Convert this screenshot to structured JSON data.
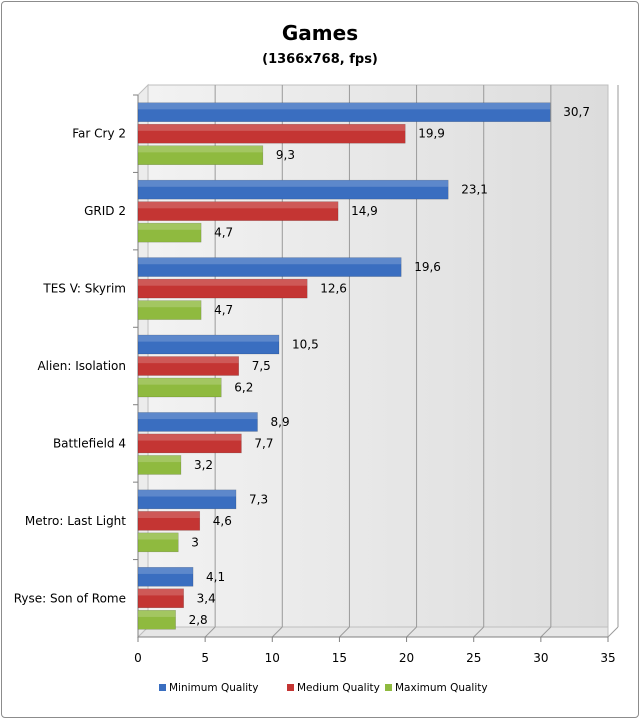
{
  "chart_data": {
    "type": "bar",
    "orientation": "horizontal",
    "title": "Games",
    "subtitle": "(1366x768, fps)",
    "categories": [
      "Far Cry 2",
      "GRID 2",
      "TES V: Skyrim",
      "Alien: Isolation",
      "Battlefield 4",
      "Metro: Last Light",
      "Ryse: Son of Rome"
    ],
    "series": [
      {
        "name": "Minimum Quality",
        "color": "#3a6ec0",
        "values": [
          30.7,
          23.1,
          19.6,
          10.5,
          8.9,
          7.3,
          4.1
        ],
        "labels": [
          "30,7",
          "23,1",
          "19,6",
          "10,5",
          "8,9",
          "7,3",
          "4,1"
        ]
      },
      {
        "name": "Medium Quality",
        "color": "#c43533",
        "values": [
          19.9,
          14.9,
          12.6,
          7.5,
          7.7,
          4.6,
          3.4
        ],
        "labels": [
          "19,9",
          "14,9",
          "12,6",
          "7,5",
          "7,7",
          "4,6",
          "3,4"
        ]
      },
      {
        "name": "Maximum Quality",
        "color": "#8fba3f",
        "values": [
          9.3,
          4.7,
          4.7,
          6.2,
          3.2,
          3,
          2.8
        ],
        "labels": [
          "9,3",
          "4,7",
          "4,7",
          "6,2",
          "3,2",
          "3",
          "2,8"
        ]
      }
    ],
    "xlim": [
      0,
      35
    ],
    "xticks": [
      0,
      5,
      10,
      15,
      20,
      25,
      30,
      35
    ],
    "grid": true,
    "legend_position": "bottom"
  }
}
